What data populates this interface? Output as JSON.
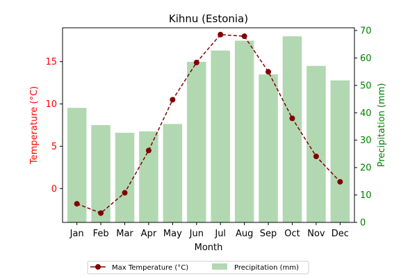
{
  "chart_data": {
    "type": "bar+line",
    "title": "Kihnu (Estonia)",
    "xlabel": "Month",
    "categories": [
      "Jan",
      "Feb",
      "Mar",
      "Apr",
      "May",
      "Jun",
      "Jul",
      "Aug",
      "Sep",
      "Oct",
      "Nov",
      "Dec"
    ],
    "left_axis": {
      "label": "Temperature (°C)",
      "ylim": [
        -4,
        19
      ],
      "ticks": [
        0,
        5,
        10,
        15
      ],
      "color": "#ff0000"
    },
    "right_axis": {
      "label": "Precipitation (mm)",
      "ylim": [
        0,
        71
      ],
      "ticks": [
        0,
        10,
        20,
        30,
        40,
        50,
        60,
        70
      ],
      "color": "#008000"
    },
    "series": [
      {
        "name": "Max Temperature (°C)",
        "kind": "line",
        "axis": "left",
        "color": "#800000",
        "values": [
          -1.8,
          -2.9,
          -0.5,
          4.5,
          10.5,
          14.9,
          18.2,
          18.0,
          13.8,
          8.3,
          3.8,
          0.8
        ]
      },
      {
        "name": "Precipitation (mm)",
        "kind": "bar",
        "axis": "right",
        "color": "#b2d8b2",
        "values": [
          41.8,
          35.5,
          32.7,
          33.2,
          35.9,
          58.6,
          62.7,
          66.3,
          54.0,
          67.9,
          57.1,
          51.8
        ]
      }
    ],
    "legend": {
      "placement": "bottom-center",
      "columns": 2
    }
  }
}
